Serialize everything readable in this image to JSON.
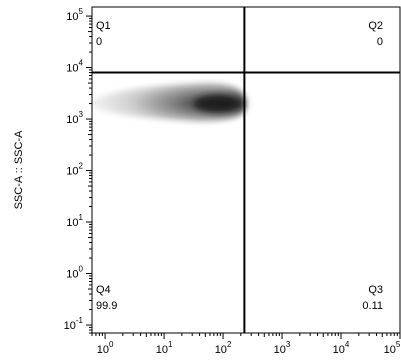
{
  "chart_data": {
    "type": "scatter",
    "title": "",
    "xlabel": "",
    "ylabel": "SSC-A :: SSC-A",
    "x_scale": "log",
    "y_scale": "log",
    "xlim": [
      0.6,
      100000
    ],
    "ylim": [
      0.07,
      150000
    ],
    "x_ticks": [
      {
        "value": 1,
        "mantissa": "10",
        "exp": "0"
      },
      {
        "value": 10,
        "mantissa": "10",
        "exp": "1"
      },
      {
        "value": 100,
        "mantissa": "10",
        "exp": "2"
      },
      {
        "value": 1000,
        "mantissa": "10",
        "exp": "3"
      },
      {
        "value": 10000,
        "mantissa": "10",
        "exp": "4"
      },
      {
        "value": 100000,
        "mantissa": "10",
        "exp": "5"
      }
    ],
    "y_ticks": [
      {
        "value": 0.1,
        "mantissa": "10",
        "exp": "-1"
      },
      {
        "value": 1,
        "mantissa": "10",
        "exp": "0"
      },
      {
        "value": 10,
        "mantissa": "10",
        "exp": "1"
      },
      {
        "value": 100,
        "mantissa": "10",
        "exp": "2"
      },
      {
        "value": 1000,
        "mantissa": "10",
        "exp": "3"
      },
      {
        "value": 10000,
        "mantissa": "10",
        "exp": "4"
      },
      {
        "value": 100000,
        "mantissa": "10",
        "exp": "5"
      }
    ],
    "gates": {
      "x": 230,
      "y": 8000
    },
    "quadrants": [
      {
        "name": "Q1",
        "value": "0",
        "position": "top-left"
      },
      {
        "name": "Q2",
        "value": "0",
        "position": "top-right"
      },
      {
        "name": "Q3",
        "value": "0.11",
        "position": "bottom-right"
      },
      {
        "name": "Q4",
        "value": "99.9",
        "position": "bottom-left"
      }
    ],
    "density": {
      "x_range": [
        0.6,
        250
      ],
      "y_range": [
        900,
        5000
      ],
      "peak": {
        "x": 80,
        "y": 2000
      }
    },
    "grid": false
  }
}
